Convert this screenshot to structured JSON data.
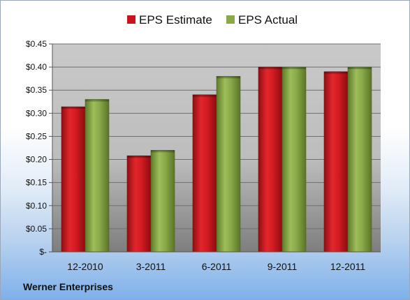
{
  "footer": {
    "company": "Werner Enterprises"
  },
  "colors": {
    "estimate": "#c8141a",
    "actual": "#8aaa4a"
  },
  "chart_data": {
    "type": "bar",
    "categories": [
      "12-2010",
      "3-2011",
      "6-2011",
      "9-2011",
      "12-2011"
    ],
    "series": [
      {
        "name": "EPS Estimate",
        "values": [
          0.314,
          0.208,
          0.34,
          0.4,
          0.39
        ]
      },
      {
        "name": "EPS Actual",
        "values": [
          0.33,
          0.22,
          0.38,
          0.4,
          0.4
        ]
      }
    ],
    "ylim": [
      0,
      0.45
    ],
    "yticks": [
      0,
      0.05,
      0.1,
      0.15,
      0.2,
      0.25,
      0.3,
      0.35,
      0.4,
      0.45
    ],
    "ytick_labels": [
      "$-",
      "$0.05",
      "$0.10",
      "$0.15",
      "$0.20",
      "$0.25",
      "$0.30",
      "$0.35",
      "$0.40",
      "$0.45"
    ],
    "grid": true,
    "legend": "top-center",
    "title": "",
    "xlabel": "",
    "ylabel": ""
  }
}
